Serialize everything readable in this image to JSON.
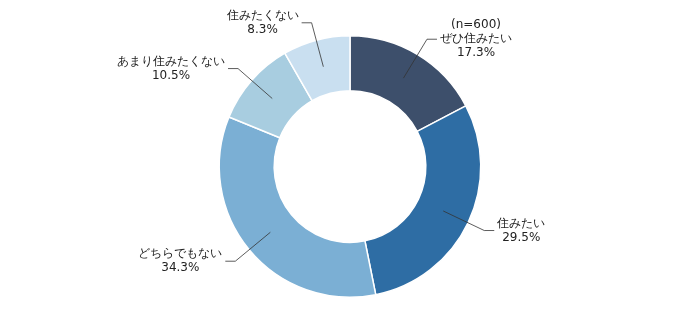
{
  "chart_data": {
    "type": "doughnut",
    "categories": [
      "ぜひ住みたい",
      "住みたい",
      "どちらでもない",
      "あまり住みたくない",
      "住みたくない"
    ],
    "values": [
      17.3,
      29.5,
      34.3,
      10.5,
      8.3
    ],
    "value_labels": [
      "17.3%",
      "29.5%",
      "34.3%",
      "10.5%",
      "8.3%"
    ],
    "colors": [
      "#3d4f6b",
      "#2e6da4",
      "#7bafd4",
      "#a8cde0",
      "#c9dff0"
    ],
    "data_labels": true,
    "annotations": [
      "(n=600)"
    ]
  }
}
